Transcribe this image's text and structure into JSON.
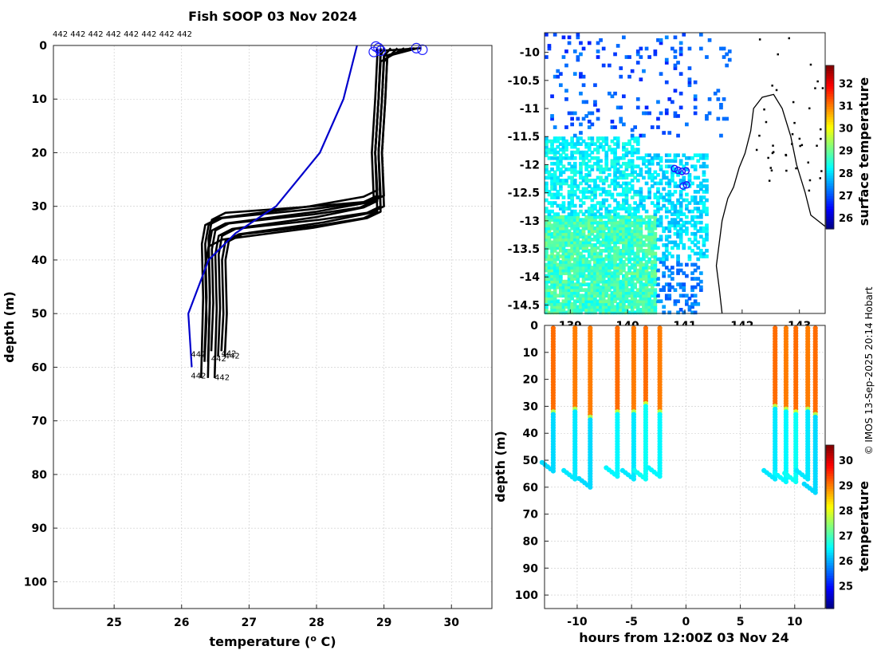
{
  "chart_data": [
    {
      "type": "line",
      "panel": "profiles",
      "title": "Fish SOOP 03 Nov 2024",
      "xlabel": "temperature (o C)",
      "xlabel_text": "temperature (",
      "xlabel_sup": "o",
      "xlabel_tail": " C)",
      "ylabel": "depth (m)",
      "xlim": [
        24.1,
        30.6
      ],
      "ylim": [
        105,
        0
      ],
      "xticks": [
        25,
        26,
        27,
        28,
        29,
        30
      ],
      "yticks": [
        0,
        10,
        20,
        30,
        40,
        50,
        60,
        70,
        80,
        90,
        100
      ],
      "grid": true,
      "top_annotation": "442 442 442 442 442 442 442 442",
      "profile_label": "442",
      "reference_profile": {
        "color": "#0000cc",
        "temperature": [
          28.6,
          28.4,
          28.05,
          27.4,
          26.8,
          26.4,
          26.1,
          26.15
        ],
        "depth": [
          0,
          10,
          20,
          30,
          35,
          40,
          50,
          60
        ]
      },
      "profiles": [
        {
          "t_surf": 29.3,
          "t_mix": 28.9,
          "t_deep": 26.3,
          "d_start": 27,
          "d_end": 33,
          "d_bottom": 62,
          "d_surf": 3
        },
        {
          "t_surf": 29.1,
          "t_mix": 28.95,
          "t_deep": 26.35,
          "d_start": 28,
          "d_end": 33,
          "d_bottom": 58,
          "d_surf": 2
        },
        {
          "t_surf": 29.5,
          "t_mix": 29.0,
          "t_deep": 26.4,
          "d_start": 28,
          "d_end": 34,
          "d_bottom": 59,
          "d_surf": 2
        },
        {
          "t_surf": 28.9,
          "t_mix": 28.85,
          "t_deep": 26.45,
          "d_start": 29,
          "d_end": 34,
          "d_bottom": 57,
          "d_surf": 2
        },
        {
          "t_surf": 29.55,
          "t_mix": 28.9,
          "t_deep": 26.5,
          "d_start": 29,
          "d_end": 35,
          "d_bottom": 62,
          "d_surf": 1
        },
        {
          "t_surf": 29.2,
          "t_mix": 28.95,
          "t_deep": 26.55,
          "d_start": 30,
          "d_end": 35,
          "d_bottom": 58,
          "d_surf": 3
        },
        {
          "t_surf": 29.4,
          "t_mix": 29.0,
          "t_deep": 26.6,
          "d_start": 30,
          "d_end": 36,
          "d_bottom": 57,
          "d_surf": 2
        },
        {
          "t_surf": 29.0,
          "t_mix": 28.9,
          "t_deep": 26.65,
          "d_start": 31,
          "d_end": 36,
          "d_bottom": 58,
          "d_surf": 2
        },
        {
          "t_surf": 29.45,
          "t_mix": 28.95,
          "t_deep": 26.35,
          "d_start": 31,
          "d_end": 37,
          "d_bottom": 59,
          "d_surf": 2
        },
        {
          "t_surf": 28.95,
          "t_mix": 28.9,
          "t_deep": 26.4,
          "d_start": 28,
          "d_end": 32,
          "d_bottom": 62,
          "d_surf": 1
        }
      ],
      "surface_markers": [
        {
          "t": 28.88,
          "d": 0.2
        },
        {
          "t": 28.92,
          "d": 0.5
        },
        {
          "t": 28.85,
          "d": 1.2
        },
        {
          "t": 28.95,
          "d": 1.0
        },
        {
          "t": 29.48,
          "d": 0.5
        },
        {
          "t": 29.57,
          "d": 0.8
        }
      ],
      "bottom_labels": [
        {
          "t": 26.25,
          "d": 57.5
        },
        {
          "t": 26.55,
          "d": 58.3
        },
        {
          "t": 26.7,
          "d": 57.3
        },
        {
          "t": 26.75,
          "d": 57.8
        },
        {
          "t": 26.25,
          "d": 61.5
        },
        {
          "t": 26.6,
          "d": 61.8
        }
      ]
    },
    {
      "type": "heatmap",
      "panel": "map",
      "colorbar_label": "surface temperature",
      "xlim": [
        138.55,
        143.45
      ],
      "ylim": [
        -14.65,
        -9.65
      ],
      "xticks": [
        139,
        140,
        141,
        142,
        143
      ],
      "xtick_labels": [
        "139",
        "140",
        "141",
        "142",
        "143"
      ],
      "yticks": [
        -10,
        -10.5,
        -11,
        -11.5,
        -12,
        -12.5,
        -13,
        -13.5,
        -14,
        -14.5
      ],
      "ytick_labels": [
        "-10",
        "-10.5",
        "-11",
        "-11.5",
        "-12",
        "-12.5",
        "-13",
        "-13.5",
        "-14",
        "-14.5"
      ],
      "clim": [
        25.5,
        32.8
      ],
      "cticks": [
        26,
        27,
        28,
        29,
        30,
        31,
        32
      ],
      "ship_positions": [
        {
          "lon": 140.82,
          "lat": -12.07
        },
        {
          "lon": 140.88,
          "lat": -12.1
        },
        {
          "lon": 140.95,
          "lat": -12.12
        },
        {
          "lon": 141.02,
          "lat": -12.11
        },
        {
          "lon": 140.97,
          "lat": -12.38
        },
        {
          "lon": 141.03,
          "lat": -12.36
        }
      ],
      "coastline": [
        {
          "lon": 141.65,
          "lat": -14.65
        },
        {
          "lon": 141.6,
          "lat": -14.2
        },
        {
          "lon": 141.55,
          "lat": -13.8
        },
        {
          "lon": 141.6,
          "lat": -13.4
        },
        {
          "lon": 141.65,
          "lat": -13.0
        },
        {
          "lon": 141.75,
          "lat": -12.6
        },
        {
          "lon": 141.85,
          "lat": -12.4
        },
        {
          "lon": 141.95,
          "lat": -12.05
        },
        {
          "lon": 142.05,
          "lat": -11.8
        },
        {
          "lon": 142.15,
          "lat": -11.4
        },
        {
          "lon": 142.2,
          "lat": -11.0
        },
        {
          "lon": 142.35,
          "lat": -10.8
        },
        {
          "lon": 142.55,
          "lat": -10.75
        },
        {
          "lon": 142.7,
          "lat": -11.0
        },
        {
          "lon": 142.85,
          "lat": -11.5
        },
        {
          "lon": 142.95,
          "lat": -12.0
        },
        {
          "lon": 143.1,
          "lat": -12.5
        },
        {
          "lon": 143.2,
          "lat": -12.9
        },
        {
          "lon": 143.45,
          "lat": -13.1
        }
      ]
    },
    {
      "type": "scatter",
      "panel": "timeseries",
      "xlabel": "hours from 12:00Z 03 Nov 24",
      "ylabel": "depth (m)",
      "colorbar_label": "temperature",
      "xlim": [
        -13,
        12.8
      ],
      "ylim": [
        105,
        0
      ],
      "xticks": [
        -10,
        -5,
        0,
        5,
        10
      ],
      "yticks": [
        0,
        10,
        20,
        30,
        40,
        50,
        60,
        70,
        80,
        90,
        100
      ],
      "clim": [
        24.1,
        30.6
      ],
      "cticks": [
        25,
        26,
        27,
        28,
        29,
        30
      ],
      "casts": [
        {
          "x": -12.2,
          "d_therm": 32,
          "d_bottom": 54,
          "t_upper": 29.1,
          "t_lower": 26.3
        },
        {
          "x": -10.2,
          "d_therm": 31,
          "d_bottom": 57,
          "t_upper": 29.0,
          "t_lower": 26.4
        },
        {
          "x": -8.8,
          "d_therm": 34,
          "d_bottom": 60,
          "t_upper": 29.0,
          "t_lower": 26.3
        },
        {
          "x": -6.3,
          "d_therm": 32,
          "d_bottom": 56,
          "t_upper": 29.1,
          "t_lower": 26.5
        },
        {
          "x": -4.8,
          "d_therm": 32,
          "d_bottom": 57,
          "t_upper": 29.0,
          "t_lower": 26.4
        },
        {
          "x": -3.7,
          "d_therm": 29,
          "d_bottom": 57,
          "t_upper": 29.1,
          "t_lower": 26.6
        },
        {
          "x": -2.4,
          "d_therm": 32,
          "d_bottom": 56,
          "t_upper": 29.0,
          "t_lower": 26.5
        },
        {
          "x": 8.2,
          "d_therm": 30,
          "d_bottom": 57,
          "t_upper": 29.1,
          "t_lower": 26.4
        },
        {
          "x": 9.2,
          "d_therm": 31,
          "d_bottom": 58,
          "t_upper": 29.0,
          "t_lower": 26.5
        },
        {
          "x": 10.1,
          "d_therm": 32,
          "d_bottom": 58,
          "t_upper": 29.1,
          "t_lower": 26.6
        },
        {
          "x": 11.2,
          "d_therm": 31,
          "d_bottom": 57,
          "t_upper": 29.0,
          "t_lower": 26.4
        },
        {
          "x": 11.9,
          "d_therm": 33,
          "d_bottom": 62,
          "t_upper": 29.1,
          "t_lower": 26.3
        }
      ]
    }
  ],
  "credit": "© IMOS 13-Sep-2025 20:14 Hobart"
}
